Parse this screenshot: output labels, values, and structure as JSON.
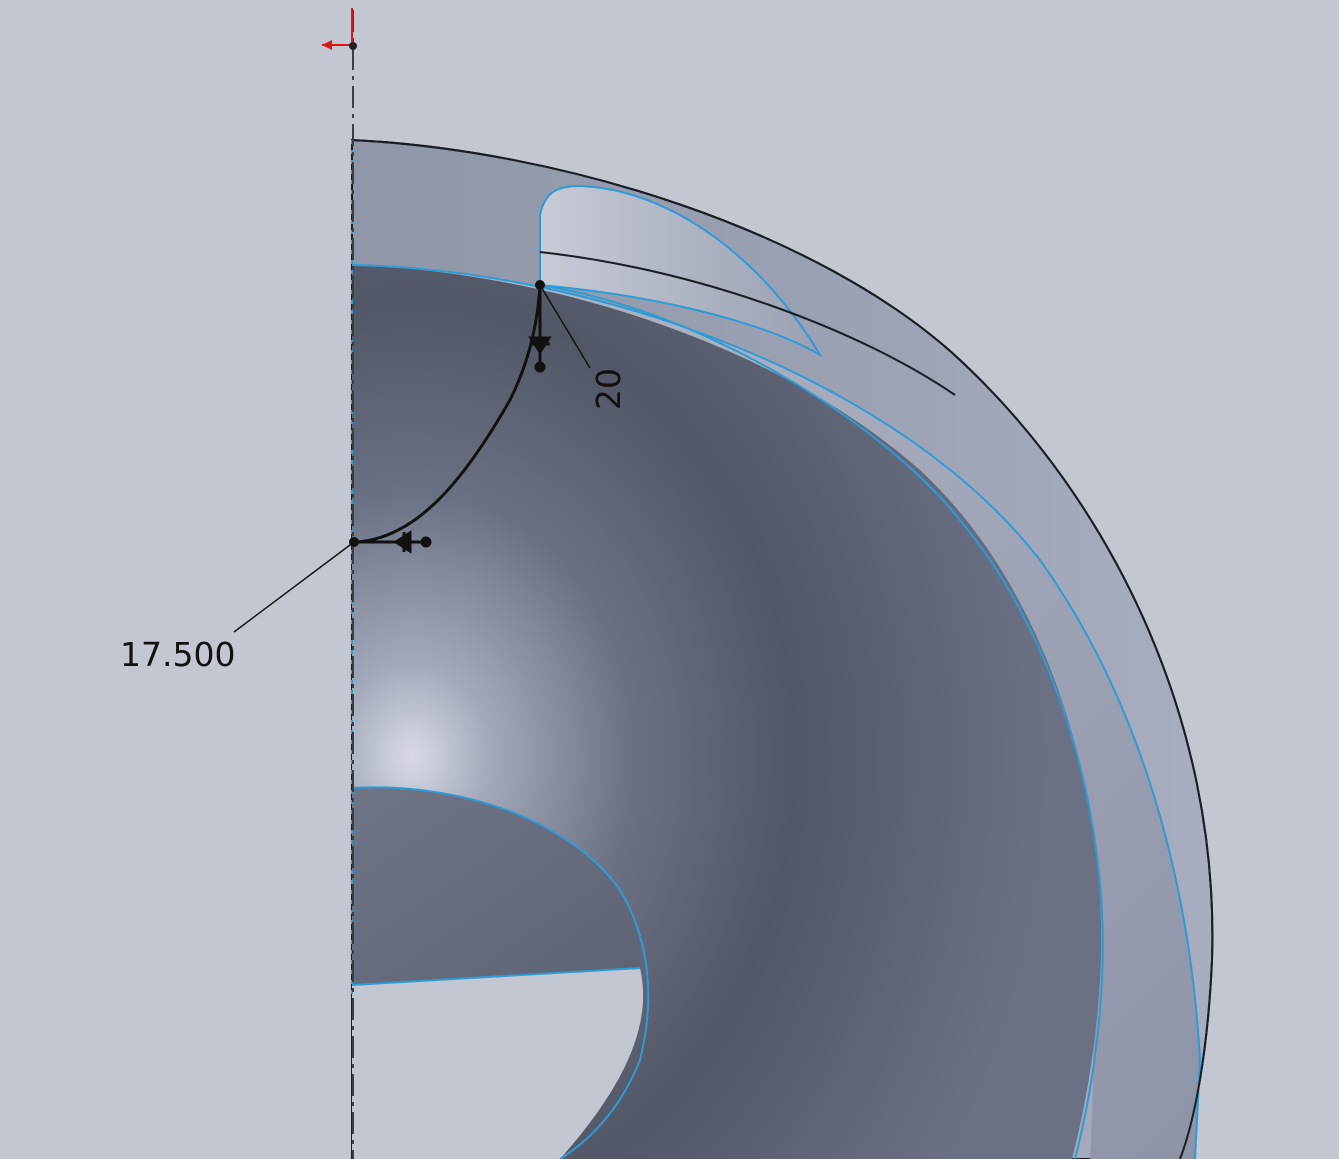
{
  "colors": {
    "background": "#c3c7d1",
    "edge_highlight": "#2f9bd6",
    "sketch": "#111111",
    "origin_marker": "#e01515"
  },
  "dimensions": {
    "radial": "17.500",
    "vertical": "20"
  },
  "icons": [
    "origin-marker-icon",
    "sketch-point-icon",
    "tangent-handle-icon"
  ]
}
